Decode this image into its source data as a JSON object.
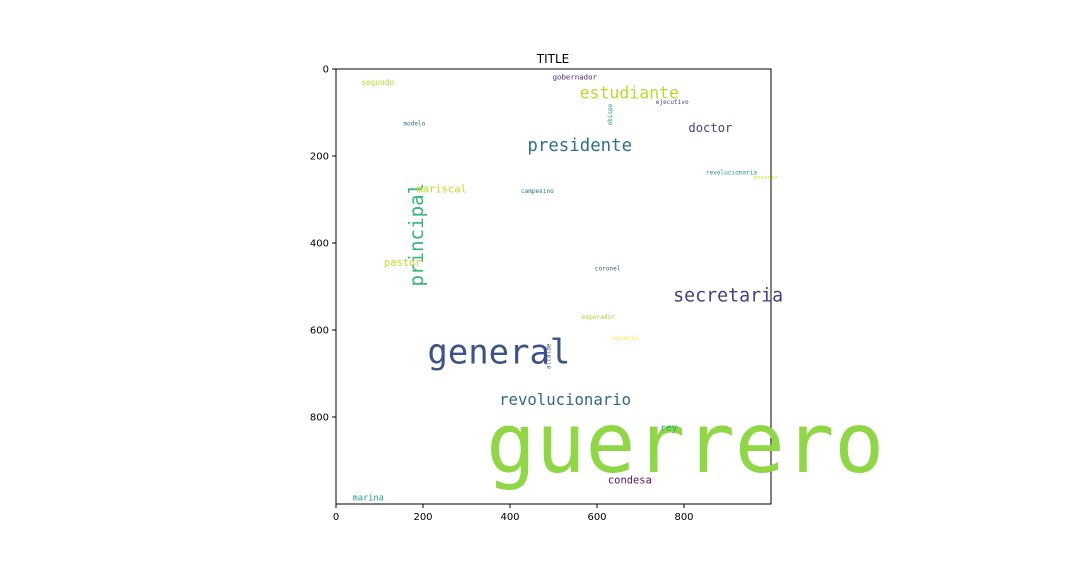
{
  "chart_data": {
    "type": "wordcloud",
    "title": "TITLE",
    "xlabel": "",
    "ylabel": "",
    "xlim": [
      0,
      1000
    ],
    "ylim": [
      1000,
      0
    ],
    "xticks": [
      0,
      200,
      400,
      600,
      800
    ],
    "yticks": [
      0,
      200,
      400,
      600,
      800
    ],
    "grid": false,
    "words": [
      {
        "text": "guerrero",
        "x": 345,
        "y": 860,
        "size": 190,
        "color": "#8fd744",
        "orientation": "horizontal"
      },
      {
        "text": "general",
        "x": 210,
        "y": 650,
        "size": 78,
        "color": "#3b528b",
        "orientation": "horizontal"
      },
      {
        "text": "principal",
        "x": 185,
        "y": 500,
        "size": 44,
        "color": "#35b779",
        "orientation": "vertical"
      },
      {
        "text": "secretaria",
        "x": 775,
        "y": 520,
        "size": 42,
        "color": "#433e85",
        "orientation": "horizontal"
      },
      {
        "text": "presidente",
        "x": 440,
        "y": 175,
        "size": 40,
        "color": "#2c728e",
        "orientation": "horizontal"
      },
      {
        "text": "revolucionario",
        "x": 375,
        "y": 760,
        "size": 36,
        "color": "#31688e",
        "orientation": "horizontal"
      },
      {
        "text": "estudiante",
        "x": 560,
        "y": 55,
        "size": 38,
        "color": "#b5de2b",
        "orientation": "horizontal"
      },
      {
        "text": "doctor",
        "x": 810,
        "y": 135,
        "size": 28,
        "color": "#414487",
        "orientation": "horizontal"
      },
      {
        "text": "condesa",
        "x": 625,
        "y": 945,
        "size": 24,
        "color": "#5c126e",
        "orientation": "horizontal"
      },
      {
        "text": "mariscal",
        "x": 185,
        "y": 275,
        "size": 24,
        "color": "#c2df23",
        "orientation": "horizontal"
      },
      {
        "text": "pastor",
        "x": 110,
        "y": 445,
        "size": 24,
        "color": "#c0de25",
        "orientation": "horizontal"
      },
      {
        "text": "rey",
        "x": 745,
        "y": 825,
        "size": 22,
        "color": "#26ad81",
        "orientation": "horizontal"
      },
      {
        "text": "marina",
        "x": 38,
        "y": 985,
        "size": 20,
        "color": "#1fa187",
        "orientation": "horizontal"
      },
      {
        "text": "segundo",
        "x": 58,
        "y": 30,
        "size": 18,
        "color": "#b8de29",
        "orientation": "horizontal"
      },
      {
        "text": "gobernador",
        "x": 498,
        "y": 18,
        "size": 17,
        "color": "#482677",
        "orientation": "horizontal"
      },
      {
        "text": "ejecutivo",
        "x": 735,
        "y": 75,
        "size": 14,
        "color": "#3e4989",
        "orientation": "horizontal"
      },
      {
        "text": "obispo",
        "x": 630,
        "y": 130,
        "size": 14,
        "color": "#20a386",
        "orientation": "vertical"
      },
      {
        "text": "modelo",
        "x": 155,
        "y": 125,
        "size": 14,
        "color": "#2c728e",
        "orientation": "horizontal"
      },
      {
        "text": "revolucionaria",
        "x": 850,
        "y": 238,
        "size": 14,
        "color": "#1f9a8a",
        "orientation": "horizontal"
      },
      {
        "text": "notario",
        "x": 960,
        "y": 248,
        "size": 13,
        "color": "#d8e219",
        "orientation": "horizontal"
      },
      {
        "text": "campesino",
        "x": 425,
        "y": 280,
        "size": 14,
        "color": "#2d708e",
        "orientation": "horizontal"
      },
      {
        "text": "coronel",
        "x": 595,
        "y": 458,
        "size": 14,
        "color": "#365c8d",
        "orientation": "horizontal"
      },
      {
        "text": "emperador",
        "x": 565,
        "y": 570,
        "size": 14,
        "color": "#a0da39",
        "orientation": "horizontal"
      },
      {
        "text": "vicario",
        "x": 635,
        "y": 618,
        "size": 14,
        "color": "#fde725",
        "orientation": "horizontal"
      },
      {
        "text": "alcalde",
        "x": 488,
        "y": 690,
        "size": 14,
        "color": "#3f4788",
        "orientation": "vertical"
      }
    ]
  }
}
